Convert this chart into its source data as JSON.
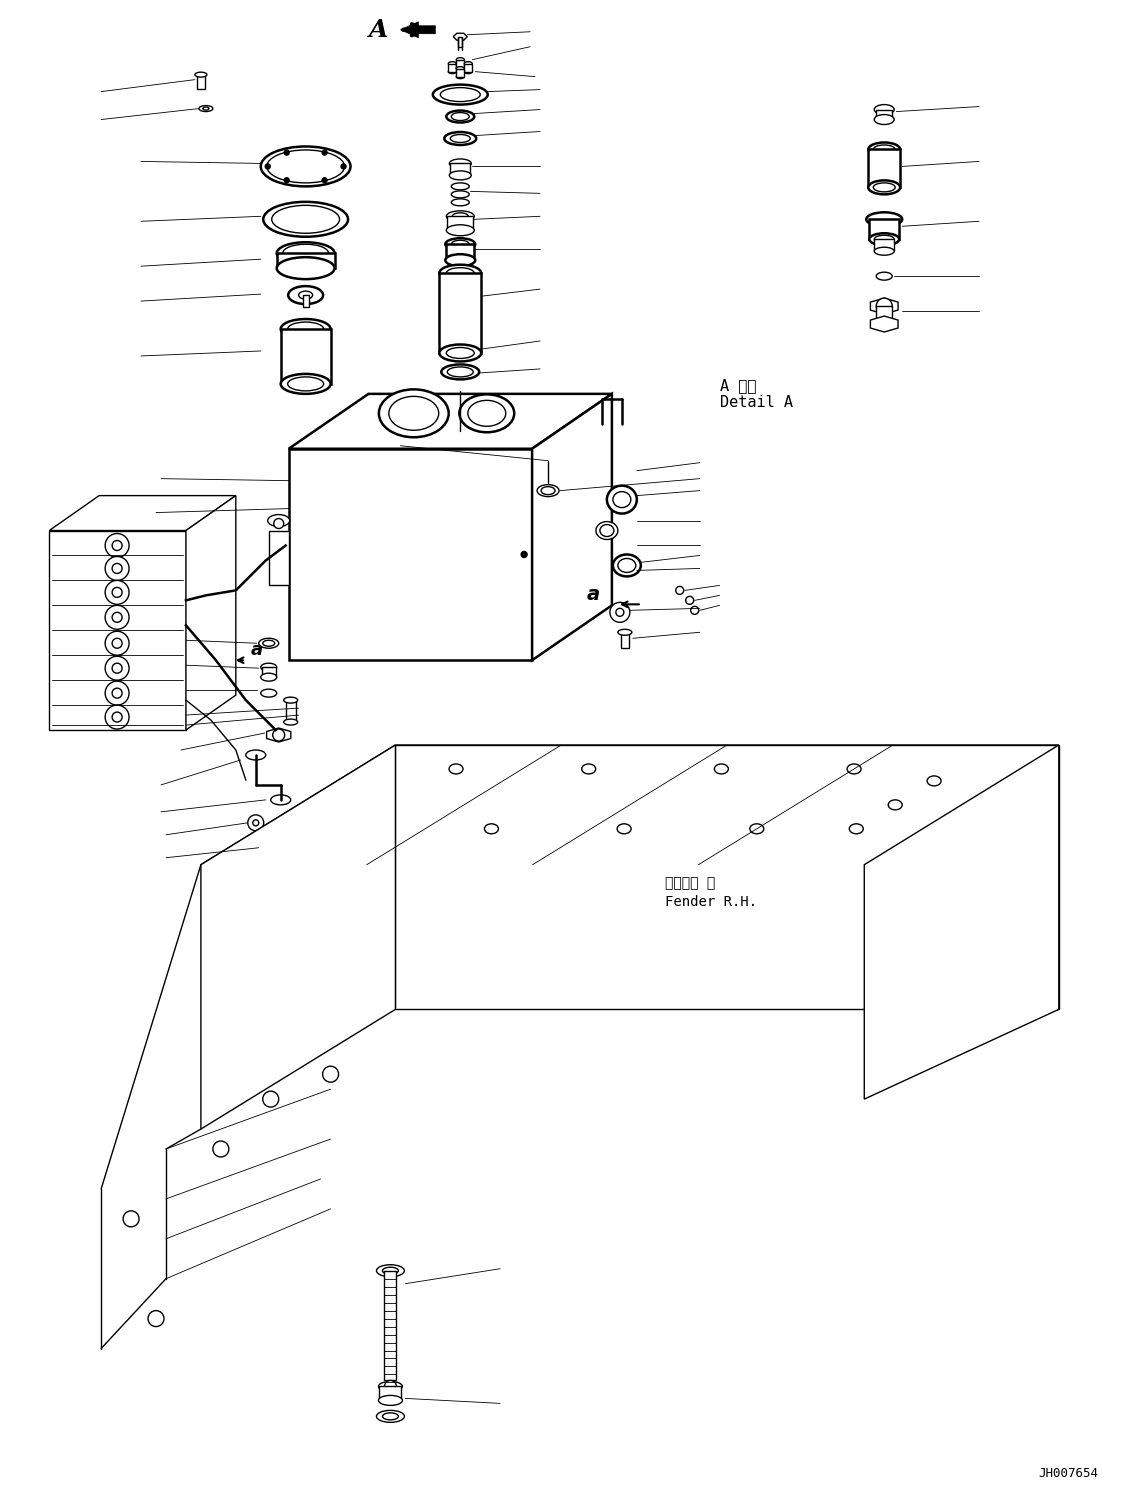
{
  "bg_color": "#ffffff",
  "line_color": "#000000",
  "lw": 1.0,
  "lw_thick": 1.8,
  "lw_thin": 0.6,
  "fig_width": 11.36,
  "fig_height": 14.92,
  "dpi": 100,
  "watermark": "JH007654",
  "detail_a_line1": "A 詳細",
  "detail_a_line2": "Detail A",
  "fender_line1": "フェンダ 右",
  "fender_line2": "Fender R.H.",
  "label_a_italic": "a"
}
